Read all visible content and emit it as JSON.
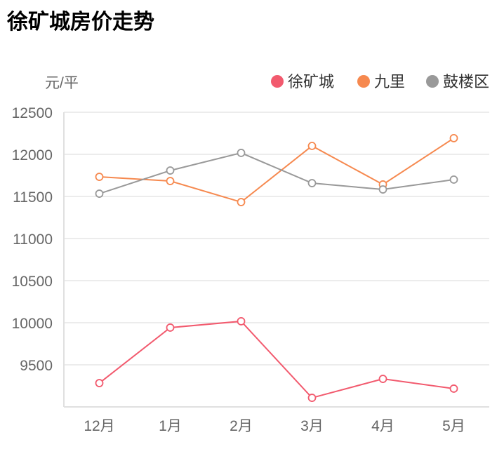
{
  "title": "徐矿城房价走势",
  "chart_data": {
    "type": "line",
    "title": "徐矿城房价走势",
    "ylabel": "元/平",
    "categories": [
      "12月",
      "1月",
      "2月",
      "3月",
      "4月",
      "5月"
    ],
    "ylim": [
      9000,
      12500
    ],
    "yticks": [
      9500,
      10000,
      10500,
      11000,
      11500,
      12000,
      12500
    ],
    "grid": true,
    "legend": "top-right",
    "series": [
      {
        "name": "徐矿城",
        "color": "#f25a6e",
        "values": [
          9283,
          9942,
          10017,
          9108,
          9333,
          9217
        ]
      },
      {
        "name": "九里",
        "color": "#f6894f",
        "values": [
          11733,
          11683,
          11433,
          12100,
          11642,
          12192
        ]
      },
      {
        "name": "鼓楼区",
        "color": "#999999",
        "values": [
          11533,
          11808,
          12017,
          11658,
          11583,
          11700
        ]
      }
    ]
  }
}
